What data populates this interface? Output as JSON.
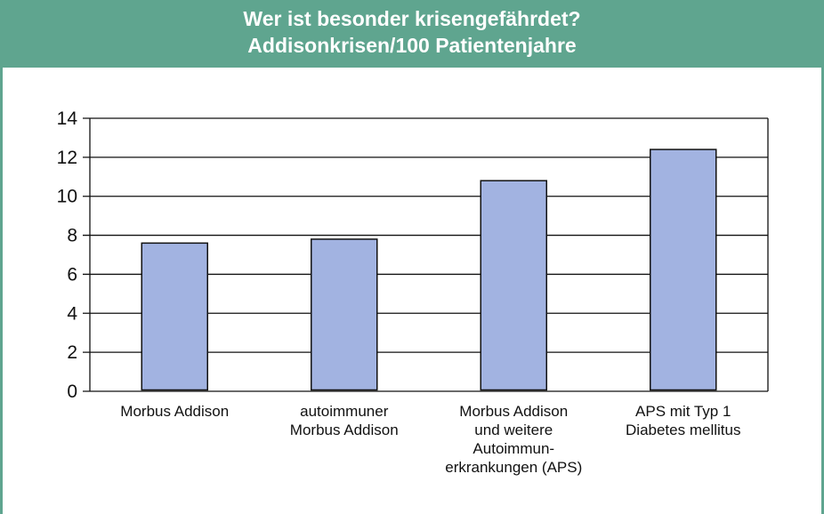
{
  "header": {
    "title_line1": "Wer ist besonder krisengefährdet?",
    "title_line2": "Addisonkrisen/100 Patientenjahre"
  },
  "colors": {
    "header_bg": "#5fa58f",
    "bar_fill": "#a2b3e1",
    "bar_stroke": "#111111"
  },
  "chart_data": {
    "type": "bar",
    "title": "Wer ist besonder krisengefährdet? Addisonkrisen/100 Patientenjahre",
    "categories": [
      [
        "Morbus Addison"
      ],
      [
        "autoimmuner",
        "Morbus Addison"
      ],
      [
        "Morbus Addison",
        "und weitere",
        "Autoimmun-",
        "erkrankungen (APS)"
      ],
      [
        "APS mit Typ 1",
        "Diabetes mellitus"
      ]
    ],
    "values": [
      7.6,
      7.8,
      10.8,
      12.4
    ],
    "ylim": [
      0,
      14
    ],
    "yticks": [
      "0",
      "2",
      "4",
      "6",
      "8",
      "10",
      "12",
      "14"
    ],
    "grid": true,
    "xlabel": "",
    "ylabel": ""
  }
}
